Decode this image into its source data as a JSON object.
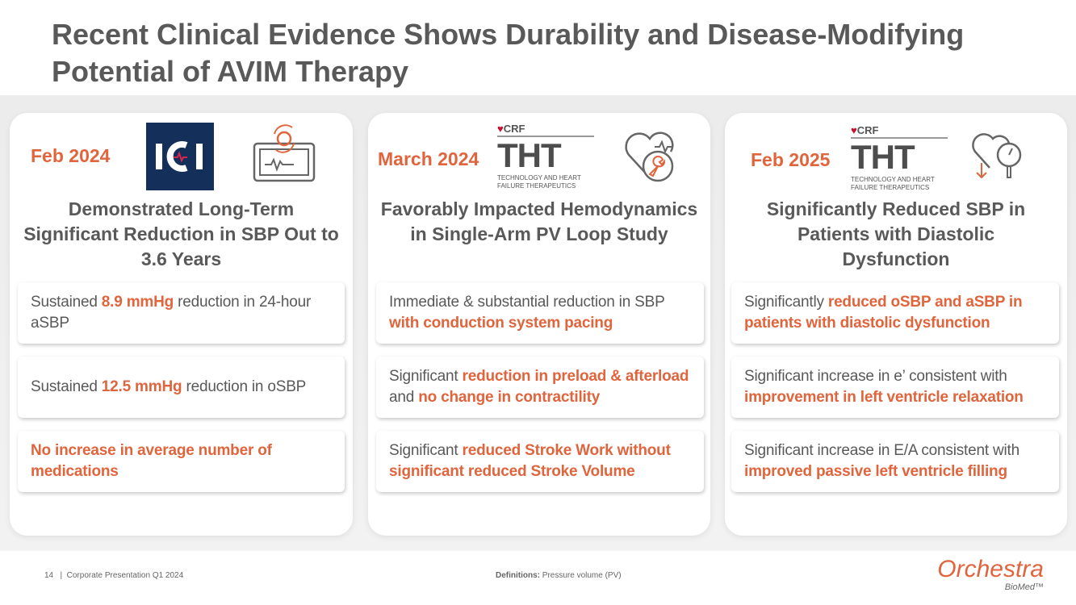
{
  "title": "Recent Clinical Evidence Shows Durability and Disease-Modifying Potential of AVIM Therapy",
  "accent": "#e0643c",
  "cards": [
    {
      "date": "Feb 2024",
      "logo": "ICI",
      "heading": "Demonstrated Long-Term Significant Reduction in SBP Out to 3.6 Years",
      "boxes": [
        [
          {
            "t": "Sustained ",
            "em": false
          },
          {
            "t": "8.9 mmHg",
            "em": true
          },
          {
            "t": " reduction in 24-hour aSBP",
            "em": false
          }
        ],
        [
          {
            "t": "Sustained ",
            "em": false
          },
          {
            "t": "12.5 mmHg",
            "em": true
          },
          {
            "t": " reduction in oSBP",
            "em": false
          }
        ],
        [
          {
            "t": "No increase in average number of medications",
            "em": true
          }
        ]
      ]
    },
    {
      "date": "March 2024",
      "logo_crf": "CRF",
      "logo_tht": "THT",
      "logo_sub": "TECHNOLOGY AND HEART FAILURE THERAPEUTICS",
      "heading": "Favorably Impacted Hemodynamics in Single-Arm PV Loop Study",
      "boxes": [
        [
          {
            "t": "Immediate & substantial reduction in SBP ",
            "em": false
          },
          {
            "t": "with conduction system pacing",
            "em": true
          }
        ],
        [
          {
            "t": "Significant ",
            "em": false
          },
          {
            "t": "reduction in preload & afterload",
            "em": true
          },
          {
            "t": " and ",
            "em": false
          },
          {
            "t": "no change in contractility",
            "em": true
          }
        ],
        [
          {
            "t": "Significant ",
            "em": false
          },
          {
            "t": "reduced Stroke Work without significant reduced Stroke Volume",
            "em": true
          }
        ]
      ]
    },
    {
      "date": "Feb 2025",
      "logo_crf": "CRF",
      "logo_tht": "THT",
      "logo_sub": "TECHNOLOGY AND HEART FAILURE THERAPEUTICS",
      "heading": "Significantly Reduced SBP in Patients with Diastolic Dysfunction",
      "boxes": [
        [
          {
            "t": "Significantly ",
            "em": false
          },
          {
            "t": "reduced oSBP and aSBP in patients with diastolic dysfunction",
            "em": true
          }
        ],
        [
          {
            "t": "Significant increase in e’ consistent with ",
            "em": false
          },
          {
            "t": "improvement in left ventricle relaxation",
            "em": true
          }
        ],
        [
          {
            "t": "Significant increase in E/A consistent with ",
            "em": false
          },
          {
            "t": "improved passive left ventricle filling",
            "em": true
          }
        ]
      ]
    }
  ],
  "footer": {
    "page": "14",
    "sep": "|",
    "deck": "Corporate Presentation Q1 2024",
    "defs_label": "Definitions:",
    "defs": " Pressure volume (PV)",
    "brand": "Orchestra",
    "brand_sub": "BioMed™"
  }
}
